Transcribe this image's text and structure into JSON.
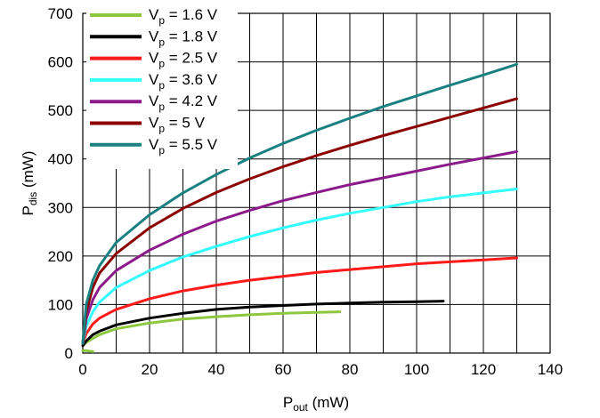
{
  "chart_data": {
    "type": "line",
    "xlabel": {
      "main": "P",
      "sub": "out",
      "unit": " (mW)"
    },
    "ylabel": {
      "main": "P",
      "sub": "dis",
      "unit": " (mW)"
    },
    "xlim": [
      0,
      140
    ],
    "ylim": [
      0,
      700
    ],
    "x_ticks": [
      "0",
      "20",
      "40",
      "60",
      "80",
      "100",
      "120",
      "140"
    ],
    "y_ticks": [
      "0",
      "100",
      "200",
      "300",
      "400",
      "500",
      "600",
      "700"
    ],
    "grid": true,
    "legend_position": "top-left",
    "series": [
      {
        "name": "1.6 V",
        "legend_prefix": "V",
        "legend_sub": "p",
        "legend_eq": " = ",
        "color": "#8dc63f",
        "x": [
          0,
          1,
          2,
          3
        ],
        "y": [
          5,
          5,
          4,
          3
        ],
        "x2": [
          0,
          1,
          3,
          5,
          10,
          20,
          30,
          40,
          50,
          60,
          70,
          77
        ],
        "y2": [
          15,
          22,
          30,
          38,
          50,
          62,
          70,
          75,
          79,
          82,
          84,
          85
        ]
      },
      {
        "name": "1.8 V",
        "legend_prefix": "V",
        "legend_sub": "p",
        "legend_eq": " = ",
        "color": "#000000",
        "x": [
          0,
          1,
          3,
          5,
          10,
          20,
          30,
          40,
          50,
          60,
          70,
          80,
          90,
          100,
          108
        ],
        "y": [
          15,
          25,
          38,
          45,
          58,
          72,
          82,
          90,
          95,
          98,
          101,
          103,
          105,
          106,
          107
        ]
      },
      {
        "name": "2.5 V",
        "legend_prefix": "V",
        "legend_sub": "p",
        "legend_eq": " = ",
        "color": "#ff1a1a",
        "x": [
          0,
          1,
          3,
          5,
          10,
          20,
          30,
          40,
          50,
          60,
          70,
          80,
          90,
          100,
          110,
          120,
          130
        ],
        "y": [
          20,
          40,
          60,
          72,
          90,
          112,
          128,
          140,
          150,
          158,
          166,
          172,
          178,
          184,
          188,
          192,
          196
        ]
      },
      {
        "name": "3.6 V",
        "legend_prefix": "V",
        "legend_sub": "p",
        "legend_eq": " = ",
        "color": "#33ffff",
        "x": [
          0,
          1,
          3,
          5,
          10,
          20,
          30,
          40,
          50,
          60,
          70,
          80,
          90,
          100,
          110,
          120,
          130
        ],
        "y": [
          20,
          55,
          85,
          105,
          135,
          170,
          198,
          220,
          240,
          258,
          274,
          288,
          300,
          312,
          322,
          330,
          338
        ]
      },
      {
        "name": "4.2 V",
        "legend_prefix": "V",
        "legend_sub": "p",
        "legend_eq": " = ",
        "color": "#8b1a8b",
        "x": [
          0,
          1,
          3,
          5,
          10,
          20,
          30,
          40,
          50,
          60,
          70,
          80,
          90,
          100,
          110,
          120,
          130
        ],
        "y": [
          20,
          70,
          110,
          135,
          170,
          212,
          245,
          272,
          294,
          314,
          331,
          347,
          361,
          375,
          389,
          402,
          415
        ]
      },
      {
        "name": "5 V",
        "legend_prefix": "V",
        "legend_sub": "p",
        "legend_eq": " = ",
        "color": "#8b0000",
        "x": [
          0,
          1,
          3,
          5,
          10,
          20,
          30,
          40,
          50,
          60,
          70,
          80,
          90,
          100,
          110,
          120,
          130
        ],
        "y": [
          20,
          85,
          135,
          165,
          205,
          258,
          298,
          331,
          359,
          384,
          407,
          428,
          448,
          467,
          486,
          505,
          524
        ]
      },
      {
        "name": "5.5 V",
        "legend_prefix": "V",
        "legend_sub": "p",
        "legend_eq": " = ",
        "color": "#1a8080",
        "x": [
          0,
          1,
          3,
          5,
          10,
          20,
          30,
          40,
          50,
          60,
          70,
          80,
          90,
          100,
          110,
          120,
          130
        ],
        "y": [
          20,
          100,
          150,
          180,
          228,
          285,
          330,
          368,
          402,
          432,
          459,
          484,
          508,
          530,
          552,
          573,
          595
        ]
      }
    ]
  }
}
